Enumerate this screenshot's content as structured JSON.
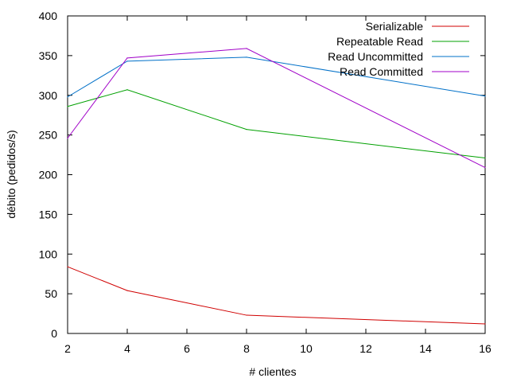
{
  "chart_data": {
    "type": "line",
    "title": "",
    "xlabel": "# clientes",
    "ylabel": "débito (pedidos/s)",
    "xlim": [
      2,
      16
    ],
    "ylim": [
      0,
      400
    ],
    "xticks": [
      2,
      4,
      6,
      8,
      10,
      12,
      14,
      16
    ],
    "yticks": [
      0,
      50,
      100,
      150,
      200,
      250,
      300,
      350,
      400
    ],
    "grid": false,
    "legend_position": "top-right",
    "x": [
      2,
      4,
      8,
      16
    ],
    "series": [
      {
        "name": "Serializable",
        "color": "#d00000",
        "values": [
          84,
          54,
          23,
          12
        ]
      },
      {
        "name": "Repeatable Read",
        "color": "#00a000",
        "values": [
          286,
          307,
          257,
          221
        ]
      },
      {
        "name": "Read Uncommitted",
        "color": "#0070c8",
        "values": [
          298,
          343,
          348,
          299
        ]
      },
      {
        "name": "Read Committed",
        "color": "#a000c8",
        "values": [
          246,
          347,
          359,
          209
        ]
      }
    ]
  }
}
